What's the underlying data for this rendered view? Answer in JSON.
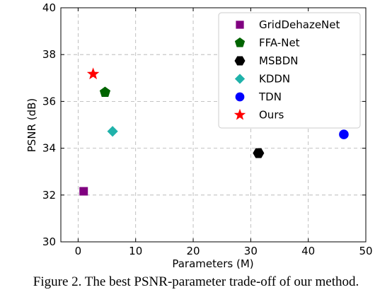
{
  "chart_data": {
    "type": "scatter",
    "xlabel": "Parameters (M)",
    "ylabel": "PSNR (dB)",
    "xlim": [
      -3,
      50
    ],
    "ylim": [
      30,
      40
    ],
    "xticks": [
      0,
      10,
      20,
      30,
      40,
      50
    ],
    "yticks": [
      30,
      32,
      34,
      36,
      38,
      40
    ],
    "grid": true,
    "legend_position": "top-right",
    "series": [
      {
        "name": "GridDehazeNet",
        "x": [
          0.96
        ],
        "y": [
          32.16
        ],
        "color": "#800080",
        "marker": "square"
      },
      {
        "name": "FFA-Net",
        "x": [
          4.68
        ],
        "y": [
          36.39
        ],
        "color": "#006400",
        "marker": "pentagon"
      },
      {
        "name": "MSBDN",
        "x": [
          31.35
        ],
        "y": [
          33.79
        ],
        "color": "#000000",
        "marker": "hexagon"
      },
      {
        "name": "KDDN",
        "x": [
          5.99
        ],
        "y": [
          34.72
        ],
        "color": "#20b2aa",
        "marker": "diamond"
      },
      {
        "name": "TDN",
        "x": [
          46.18
        ],
        "y": [
          34.59
        ],
        "color": "#0000ff",
        "marker": "circle"
      },
      {
        "name": "Ours",
        "x": [
          2.61
        ],
        "y": [
          37.17
        ],
        "color": "#ff0000",
        "marker": "star"
      }
    ]
  },
  "caption": "Figure 2. The best PSNR-parameter trade-off of our method."
}
